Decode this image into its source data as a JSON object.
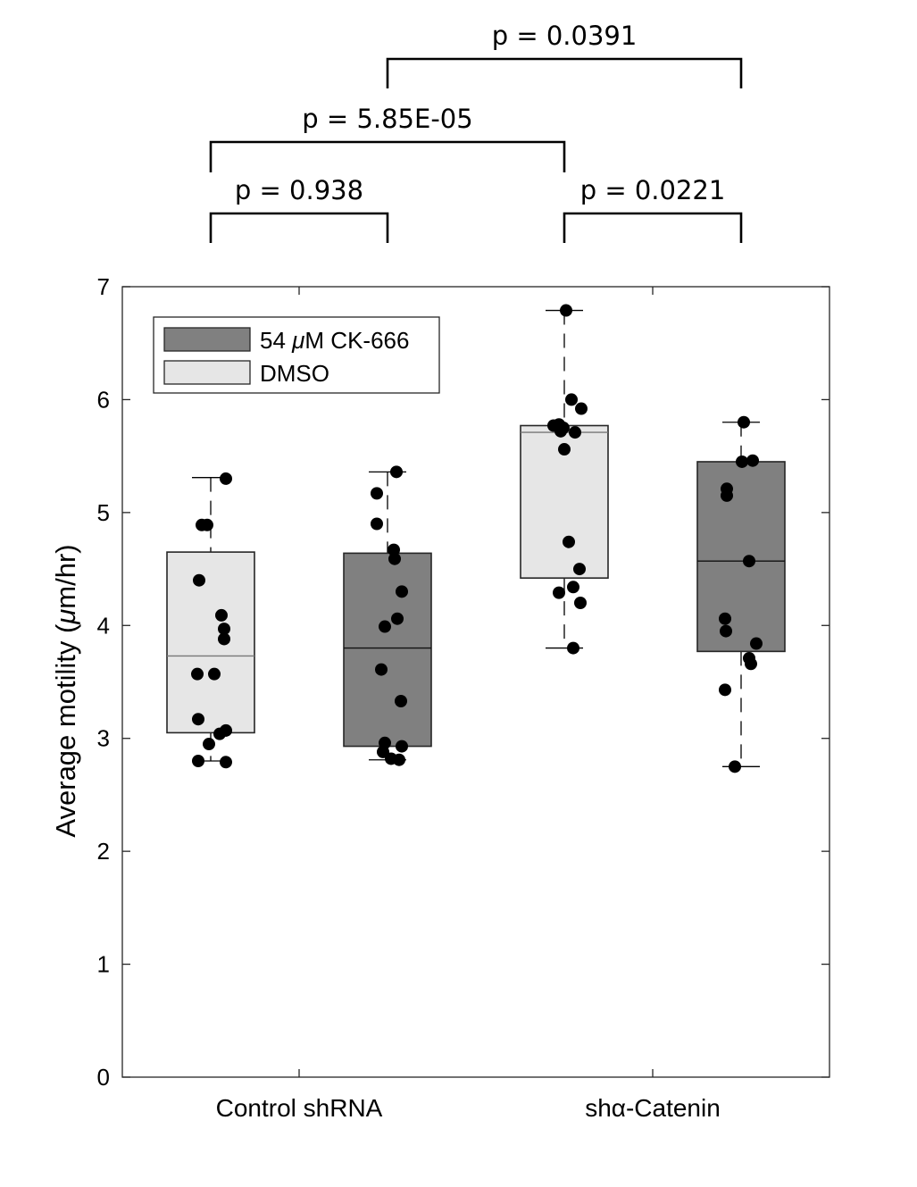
{
  "chart_data": {
    "type": "box",
    "ylabel_parts": [
      "Average motility (",
      "μ",
      "m/hr)"
    ],
    "ylim": [
      0,
      7
    ],
    "y_ticks": [
      0,
      1,
      2,
      3,
      4,
      5,
      6,
      7
    ],
    "categories": [
      "Control shRNA",
      "shα-Catenin"
    ],
    "legend": {
      "placement": "top-left",
      "items": [
        {
          "label_parts": [
            "54 ",
            "μ",
            "M CK-666"
          ],
          "color": "#808080"
        },
        {
          "label_parts": [
            "DMSO"
          ],
          "color": "#e6e6e6"
        }
      ]
    },
    "boxes": [
      {
        "group": "Control shRNA",
        "condition": "DMSO",
        "color": "#e6e6e6",
        "whisker_low": 2.8,
        "q1": 3.05,
        "median": 3.73,
        "q3": 4.65,
        "whisker_high": 5.31,
        "points": [
          5.3,
          4.89,
          4.89,
          4.4,
          4.09,
          3.97,
          3.88,
          3.57,
          3.57,
          3.17,
          3.07,
          3.04,
          2.95,
          2.8,
          2.79
        ]
      },
      {
        "group": "Control shRNA",
        "condition": "54 μM CK-666",
        "color": "#808080",
        "whisker_low": 2.81,
        "q1": 2.93,
        "median": 3.8,
        "q3": 4.64,
        "whisker_high": 5.36,
        "points": [
          5.36,
          5.17,
          4.9,
          4.67,
          4.59,
          4.3,
          4.06,
          3.99,
          3.61,
          3.33,
          2.96,
          2.93,
          2.88,
          2.82,
          2.81
        ]
      },
      {
        "group": "shα-Catenin",
        "condition": "DMSO",
        "color": "#e6e6e6",
        "whisker_low": 3.8,
        "q1": 4.42,
        "median": 5.71,
        "q3": 5.77,
        "whisker_high": 6.79,
        "points": [
          6.79,
          6.0,
          5.92,
          5.78,
          5.77,
          5.75,
          5.72,
          5.71,
          5.56,
          4.74,
          4.5,
          4.34,
          4.29,
          4.2,
          3.8
        ]
      },
      {
        "group": "shα-Catenin",
        "condition": "54 μM CK-666",
        "color": "#808080",
        "whisker_low": 2.75,
        "q1": 3.77,
        "median": 4.57,
        "q3": 5.45,
        "whisker_high": 5.8,
        "points": [
          5.8,
          5.46,
          5.45,
          5.21,
          5.15,
          4.57,
          4.06,
          3.95,
          3.84,
          3.71,
          3.66,
          3.43,
          2.75
        ]
      }
    ],
    "significance": [
      {
        "from_box": 2,
        "to_box": 4,
        "label": "p = 0.0391"
      },
      {
        "from_box": 1,
        "to_box": 3,
        "label": "p = 5.85E-05"
      },
      {
        "from_box": 1,
        "to_box": 2,
        "label": "p = 0.938"
      },
      {
        "from_box": 3,
        "to_box": 4,
        "label": "p = 0.0221"
      }
    ]
  }
}
